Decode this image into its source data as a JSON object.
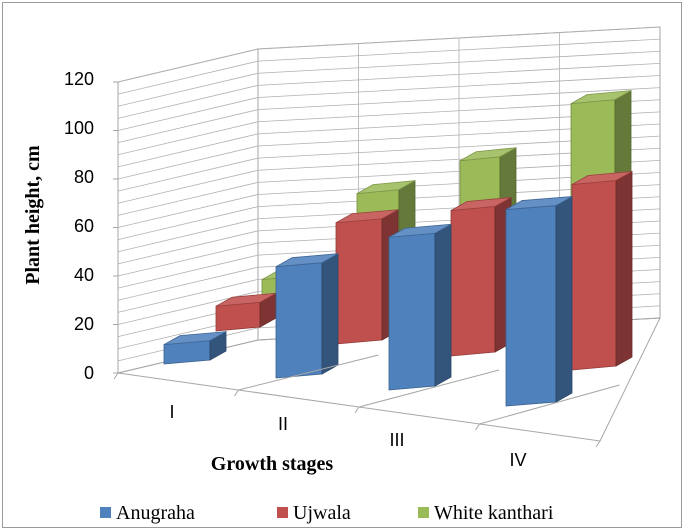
{
  "chart_data": {
    "type": "bar",
    "variant": "3d-clustered-column",
    "title": "",
    "xlabel": "Growth stages",
    "ylabel": "Plant height, cm",
    "categories": [
      "I",
      "II",
      "III",
      "IV"
    ],
    "ylim": [
      0,
      120
    ],
    "yticks": [
      "0",
      "20",
      "40",
      "60",
      "80",
      "100",
      "120"
    ],
    "grid": true,
    "legend_position": "bottom",
    "series": [
      {
        "name": "Anugraha",
        "color": "#4F81BD",
        "values": [
          10,
          45,
          60,
          75
        ]
      },
      {
        "name": "Ujwala",
        "color": "#C0504D",
        "values": [
          12,
          50,
          60,
          75
        ]
      },
      {
        "name": "White kanthari",
        "color": "#9BBB59",
        "values": [
          12,
          55,
          70,
          95
        ]
      }
    ]
  }
}
